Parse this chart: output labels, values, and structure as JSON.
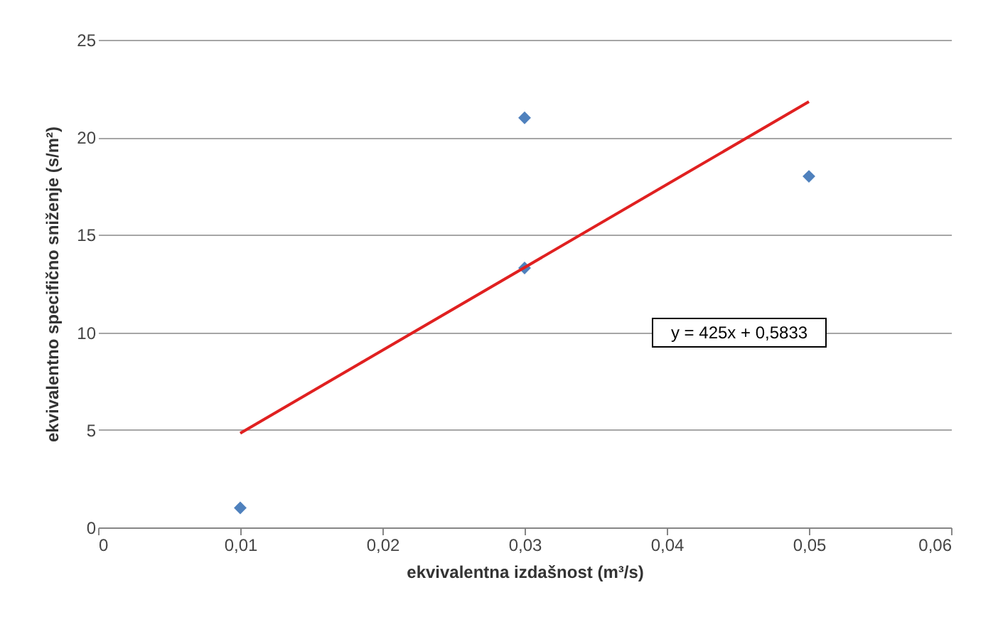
{
  "chart_data": {
    "type": "scatter",
    "xlabel": "ekvivalentna izdašnost (m³/s)",
    "ylabel": "ekvivalentno specifično sniženje (s/m²)",
    "xlim": [
      0,
      0.06
    ],
    "xticks": [
      0,
      {
        "value": 0.01,
        "label": "0,01"
      },
      {
        "value": 0.02,
        "label": "0,02"
      },
      {
        "value": 0.03,
        "label": "0,03"
      },
      {
        "value": 0.04,
        "label": "0,04"
      },
      {
        "value": 0.05,
        "label": "0,05"
      },
      {
        "value": 0.06,
        "label": "0,06"
      }
    ],
    "ylim": [
      0,
      25
    ],
    "yticks": [
      0,
      5,
      10,
      15,
      20,
      25
    ],
    "grid": "y",
    "series": [
      {
        "color": "#4f81bd",
        "marker": "diamond",
        "x": [
          0.01,
          0.03,
          0.03,
          0.05
        ],
        "values": [
          1,
          21,
          13.3,
          18
        ]
      },
      {
        "type": "line",
        "color": "#e02020",
        "line_style": "solid",
        "x": [
          0.01,
          0.05
        ],
        "values": [
          4.83,
          21.83
        ]
      }
    ],
    "annotations": [
      "y = 425x + 0,5833"
    ]
  }
}
